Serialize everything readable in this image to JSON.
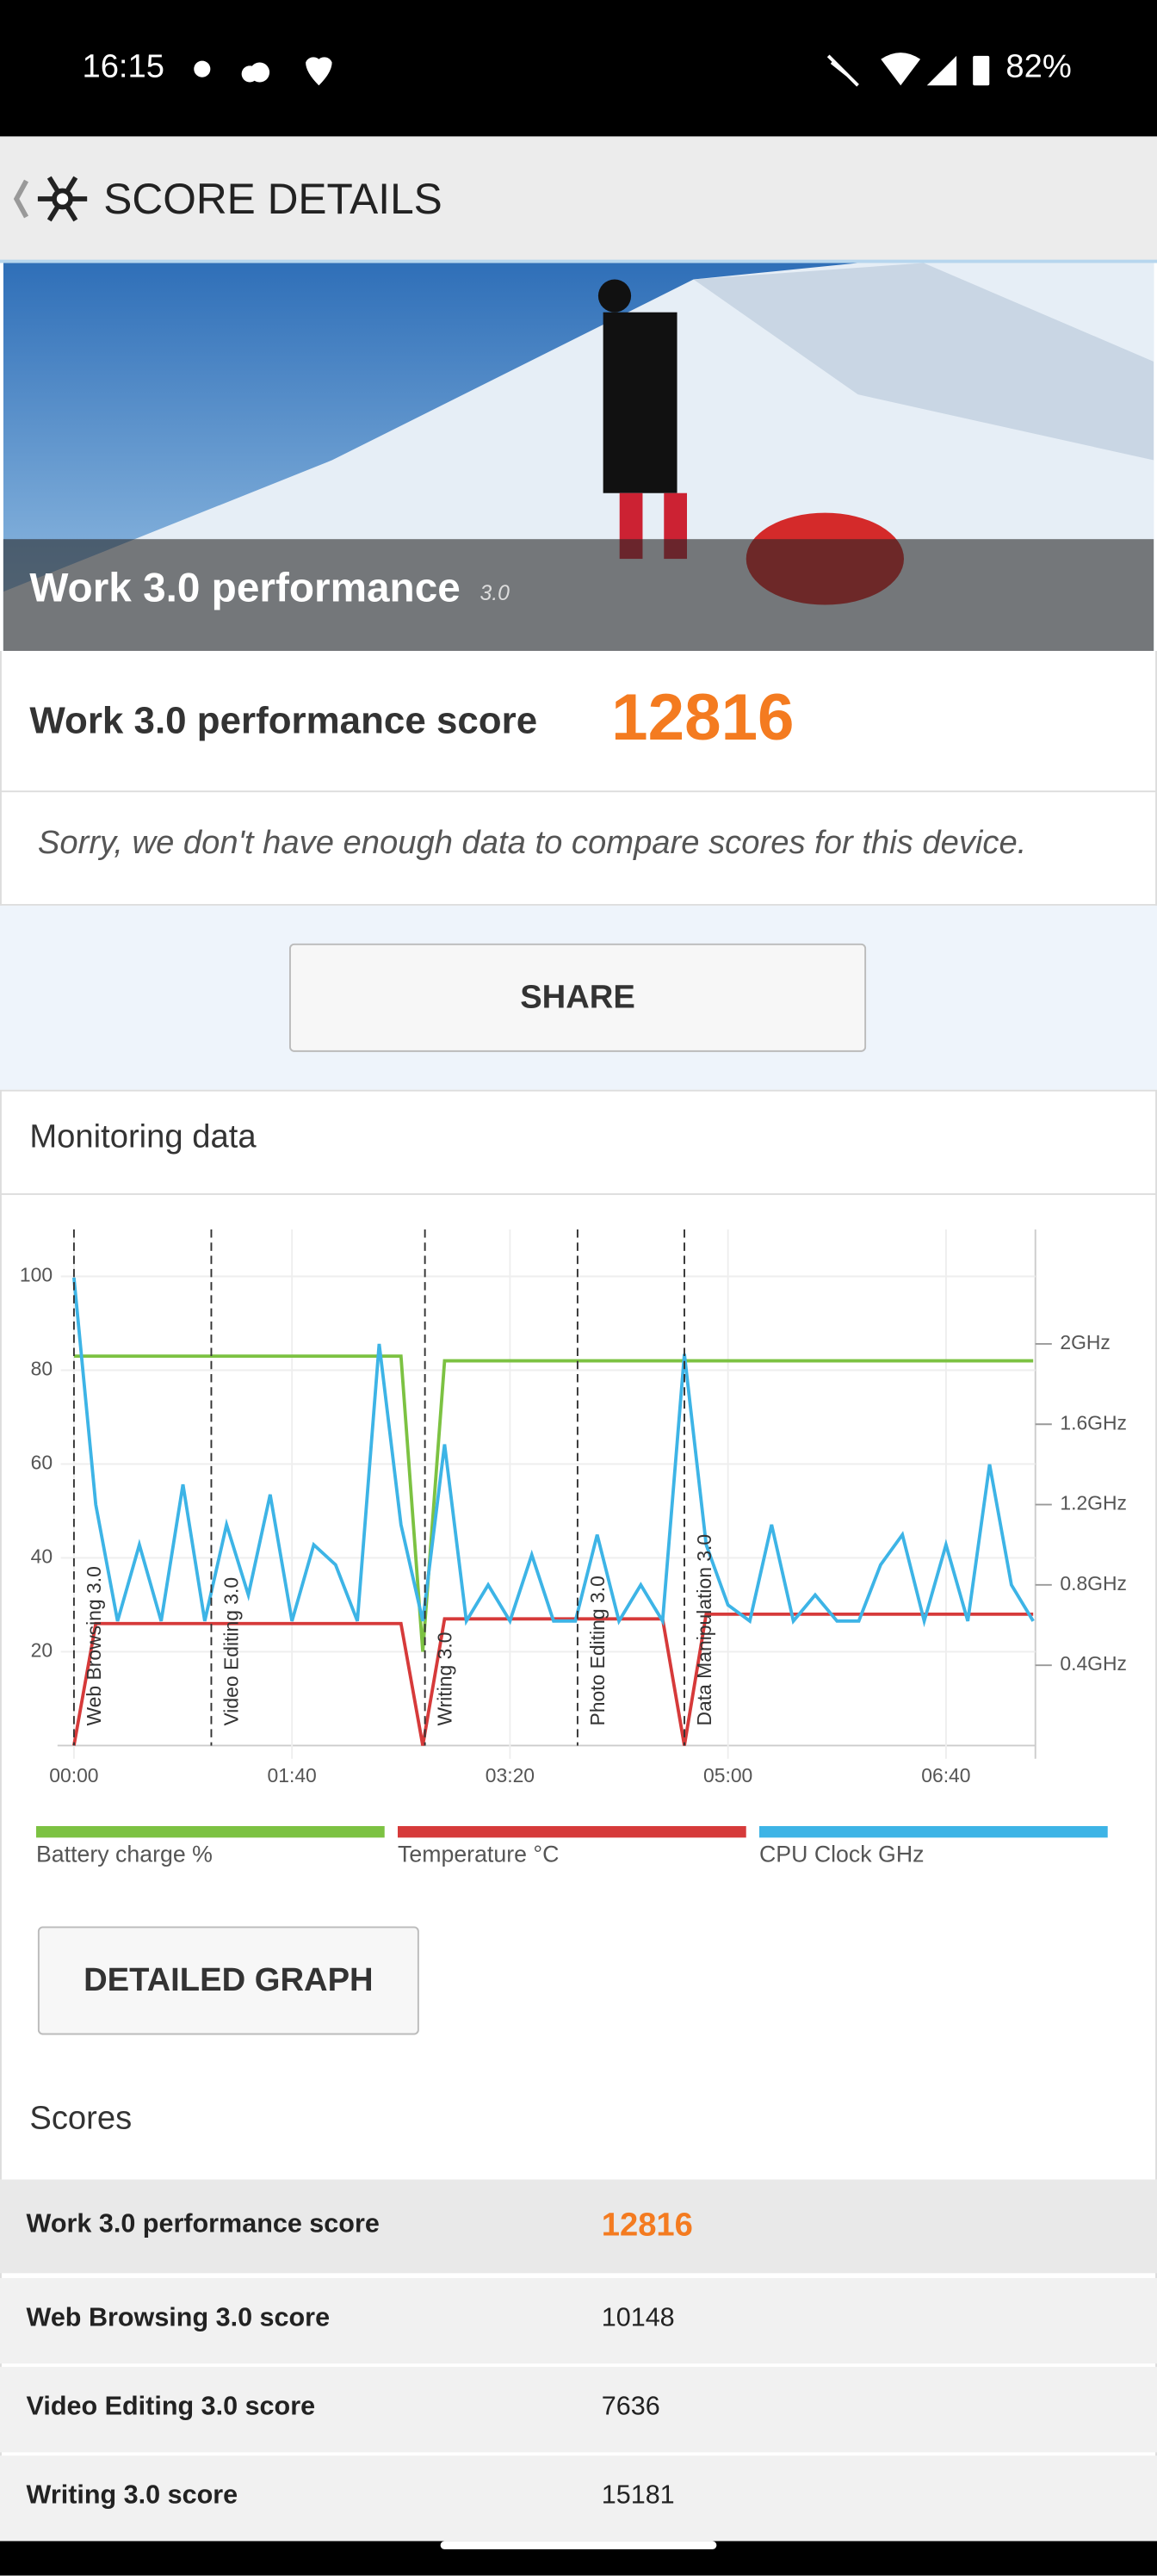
{
  "status_bar": {
    "time": "16:15",
    "battery": "82%"
  },
  "header": {
    "title": "SCORE DETAILS"
  },
  "banner": {
    "title": "Work 3.0 performance",
    "badge": "3.0"
  },
  "score": {
    "label": "Work 3.0 performance score",
    "value": "12816",
    "message": "Sorry, we don't have enough data to compare scores for this device."
  },
  "share": {
    "label": "SHARE"
  },
  "monitoring": {
    "title": "Monitoring data",
    "button": "DETAILED GRAPH"
  },
  "chart_data": {
    "type": "line",
    "x": [
      0,
      10,
      20,
      30,
      40,
      50,
      60,
      70,
      80,
      90,
      100,
      110,
      120,
      130,
      140,
      150,
      160,
      170,
      180,
      190,
      200,
      210,
      220,
      230,
      240,
      250,
      260,
      270,
      280,
      290,
      300,
      310,
      320,
      330,
      340,
      350,
      360,
      370,
      380,
      390,
      400,
      410,
      420,
      430,
      440
    ],
    "series": [
      {
        "name": "Battery charge %",
        "color": "#7cc242",
        "values": [
          83,
          83,
          83,
          83,
          83,
          83,
          83,
          83,
          83,
          83,
          83,
          83,
          83,
          83,
          83,
          83,
          20,
          82,
          82,
          82,
          82,
          82,
          82,
          82,
          82,
          82,
          82,
          82,
          82,
          82,
          82,
          82,
          82,
          82,
          82,
          82,
          82,
          82,
          82,
          82,
          82,
          82,
          82,
          82,
          82
        ]
      },
      {
        "name": "Temperature °C",
        "color": "#d63a3a",
        "values": [
          0,
          26,
          26,
          26,
          26,
          26,
          26,
          26,
          26,
          26,
          26,
          26,
          26,
          26,
          26,
          26,
          0,
          27,
          27,
          27,
          27,
          27,
          27,
          27,
          27,
          27,
          27,
          27,
          0,
          28,
          28,
          28,
          28,
          28,
          28,
          28,
          28,
          28,
          28,
          28,
          28,
          28,
          28,
          28,
          28
        ]
      },
      {
        "name": "CPU Clock GHz",
        "color": "#3db4e6",
        "axis": "y2",
        "values": [
          2.33,
          1.2,
          0.62,
          1.0,
          0.62,
          1.3,
          0.62,
          1.1,
          0.75,
          1.25,
          0.62,
          1.0,
          0.9,
          0.62,
          2.0,
          1.1,
          0.62,
          1.5,
          0.62,
          0.8,
          0.62,
          0.95,
          0.62,
          0.62,
          1.05,
          0.62,
          0.8,
          0.62,
          1.95,
          1.0,
          0.7,
          0.62,
          1.1,
          0.62,
          0.75,
          0.62,
          0.62,
          0.9,
          1.05,
          0.62,
          1.0,
          0.62,
          1.4,
          0.8,
          0.62
        ]
      }
    ],
    "xlim": [
      0,
      441
    ],
    "xticks": [
      {
        "value": 0,
        "label": "00:00"
      },
      {
        "value": 100,
        "label": "01:40"
      },
      {
        "value": 200,
        "label": "03:20"
      },
      {
        "value": 300,
        "label": "05:00"
      },
      {
        "value": 400,
        "label": "06:40"
      }
    ],
    "ylim": [
      0,
      110
    ],
    "yticks": [
      20,
      40,
      60,
      80,
      100
    ],
    "y2lim": [
      0,
      2.57
    ],
    "y2ticks": [
      {
        "value": 0.4,
        "label": "0.4GHz"
      },
      {
        "value": 0.8,
        "label": "0.8GHz"
      },
      {
        "value": 1.2,
        "label": "1.2GHz"
      },
      {
        "value": 1.6,
        "label": "1.6GHz"
      },
      {
        "value": 2,
        "label": "2GHz"
      }
    ],
    "grid": true,
    "sections": [
      {
        "x": 0,
        "label": "Web Browsing 3.0"
      },
      {
        "x": 63,
        "label": "Video Editing 3.0"
      },
      {
        "x": 161,
        "label": "Writing 3.0"
      },
      {
        "x": 231,
        "label": "Photo Editing 3.0"
      },
      {
        "x": 280,
        "label": "Data Manipulation 3.0"
      }
    ]
  },
  "scores": {
    "title": "Scores",
    "rows": [
      [
        "Work 3.0 performance score",
        "12816"
      ],
      [
        "Web Browsing 3.0 score",
        "10148"
      ],
      [
        "Video Editing 3.0 score",
        "7636"
      ],
      [
        "Writing 3.0 score",
        "15181"
      ]
    ]
  }
}
